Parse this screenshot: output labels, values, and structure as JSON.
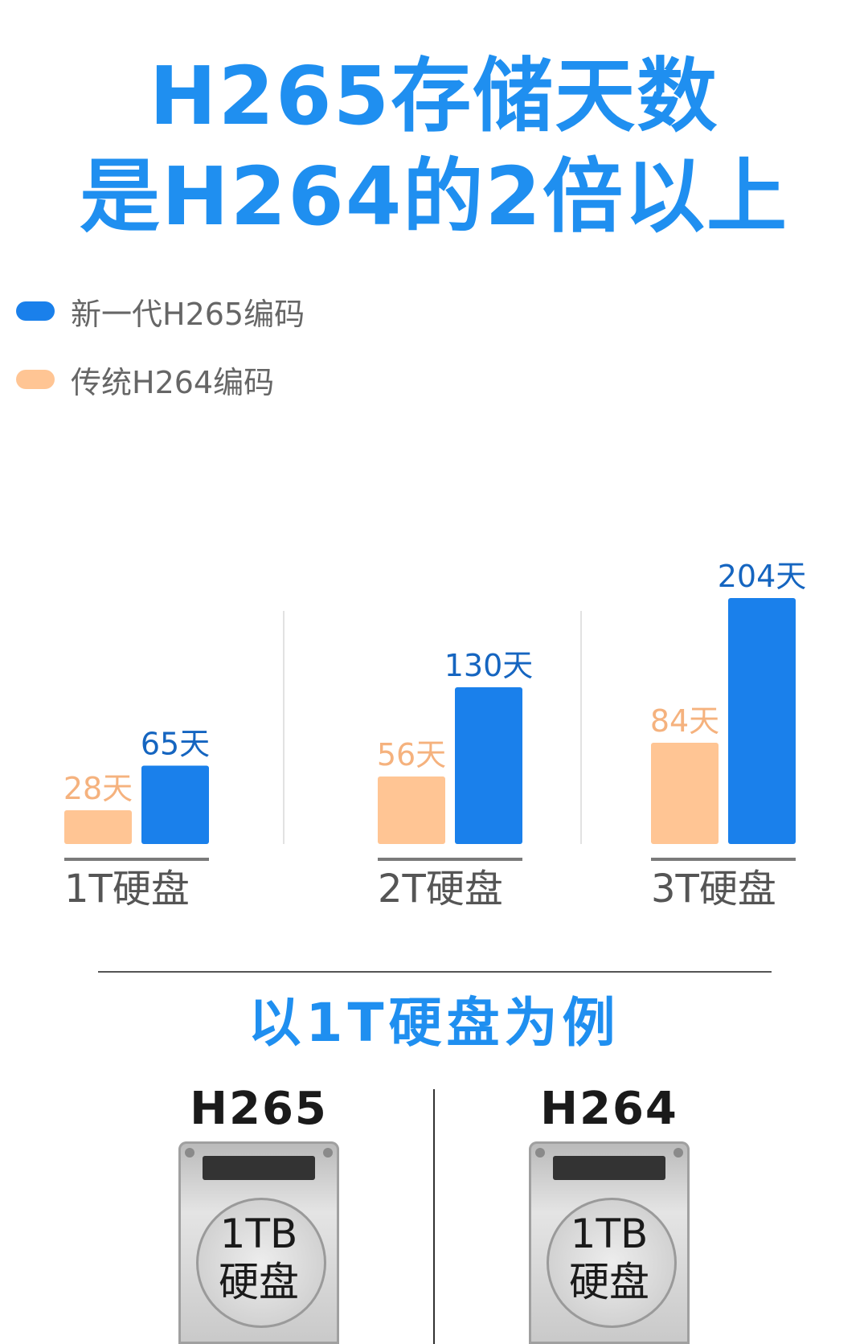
{
  "headline": {
    "line1": "H265存储天数",
    "line2": "是H264的2倍以上"
  },
  "colors": {
    "accent_blue": "#1f8ff0",
    "h265_bar": "#1a80eb",
    "h264_bar": "#ffc594",
    "h264_label": "#f5b27e",
    "h265_label": "#1565c0",
    "axis_label": "#555555"
  },
  "chart_data": {
    "type": "bar",
    "title": "",
    "xlabel": "",
    "ylabel": "",
    "categories": [
      "1T硬盘",
      "2T硬盘",
      "3T硬盘"
    ],
    "series": [
      {
        "name": "传统H264编码",
        "values": [
          28,
          56,
          84
        ],
        "labels": [
          "28天",
          "56天",
          "84天"
        ]
      },
      {
        "name": "新一代H265编码",
        "values": [
          65,
          130,
          204
        ],
        "labels": [
          "65天",
          "130天",
          "204天"
        ]
      }
    ],
    "ylim": [
      0,
      204
    ],
    "grid": false,
    "legend": "top-left"
  },
  "legend": {
    "items": [
      {
        "label": "新一代H265编码",
        "color": "#1a80eb"
      },
      {
        "label": "传统H264编码",
        "color": "#ffc594"
      }
    ]
  },
  "section": {
    "title": "以1T硬盘为例"
  },
  "comparison": {
    "left": {
      "codec": "H265",
      "capacity": "1TB",
      "kind": "硬盘"
    },
    "right": {
      "codec": "H264",
      "capacity": "1TB",
      "kind": "硬盘"
    }
  }
}
